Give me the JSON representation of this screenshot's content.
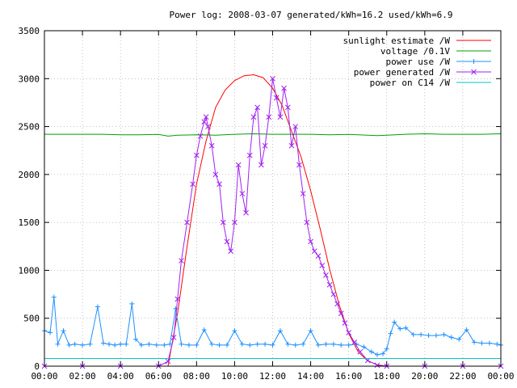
{
  "chart_data": {
    "type": "line",
    "title": "Power log: 2008-03-07 generated/kWh=16.2 used/kWh=6.9",
    "xlabel": "",
    "ylabel": "",
    "xlim": [
      0,
      24
    ],
    "ylim": [
      0,
      3500
    ],
    "x_ticks": [
      "00:00",
      "02:00",
      "04:00",
      "06:00",
      "08:00",
      "10:00",
      "12:00",
      "14:00",
      "16:00",
      "18:00",
      "20:00",
      "22:00",
      "00:00"
    ],
    "y_ticks": [
      "0",
      "500",
      "1000",
      "1500",
      "2000",
      "2500",
      "3000",
      "3500"
    ],
    "grid": true,
    "legend_position": "top-right",
    "series": [
      {
        "name": "sunlight estimate /W",
        "color": "#ff0000",
        "marker": "none",
        "x": [
          6.5,
          7.0,
          7.5,
          8.0,
          8.5,
          9.0,
          9.5,
          10.0,
          10.5,
          11.0,
          11.5,
          12.0,
          12.5,
          13.0,
          13.5,
          14.0,
          14.5,
          15.0,
          15.5,
          16.0,
          16.5,
          17.0,
          17.5,
          18.0
        ],
        "y": [
          0,
          550,
          1250,
          1900,
          2350,
          2700,
          2880,
          2980,
          3030,
          3040,
          3010,
          2900,
          2720,
          2450,
          2180,
          1830,
          1430,
          1010,
          640,
          340,
          150,
          55,
          15,
          0
        ]
      },
      {
        "name": "voltage /0.1V",
        "color": "#00a000",
        "marker": "none",
        "x": [
          0,
          1,
          2,
          3,
          4,
          5,
          6,
          6.5,
          7,
          8,
          9,
          10,
          11,
          12,
          13,
          14,
          15,
          16,
          17,
          17.5,
          18,
          19,
          20,
          21,
          22,
          23,
          24
        ],
        "y": [
          2420,
          2420,
          2420,
          2420,
          2415,
          2415,
          2418,
          2400,
          2410,
          2415,
          2410,
          2420,
          2425,
          2420,
          2420,
          2420,
          2415,
          2418,
          2410,
          2405,
          2410,
          2420,
          2425,
          2420,
          2420,
          2420,
          2425
        ]
      },
      {
        "name": "power use /W",
        "color": "#1e90ff",
        "marker": "plus",
        "x": [
          0,
          0.3,
          0.5,
          0.7,
          1.0,
          1.3,
          1.6,
          2.0,
          2.4,
          2.8,
          3.1,
          3.4,
          3.7,
          4.0,
          4.3,
          4.6,
          4.8,
          5.1,
          5.5,
          5.9,
          6.3,
          6.6,
          6.9,
          7.2,
          7.6,
          8.0,
          8.4,
          8.8,
          9.2,
          9.6,
          10.0,
          10.4,
          10.8,
          11.2,
          11.6,
          12.0,
          12.4,
          12.8,
          13.2,
          13.6,
          14.0,
          14.4,
          14.8,
          15.2,
          15.6,
          16.0,
          16.4,
          16.8,
          17.2,
          17.5,
          17.8,
          18.0,
          18.2,
          18.4,
          18.7,
          19.0,
          19.4,
          19.8,
          20.2,
          20.6,
          21.0,
          21.4,
          21.8,
          22.2,
          22.6,
          23.0,
          23.4,
          23.8,
          24.0
        ],
        "y": [
          370,
          350,
          720,
          230,
          370,
          220,
          230,
          220,
          230,
          620,
          240,
          230,
          220,
          230,
          230,
          650,
          280,
          220,
          230,
          220,
          220,
          230,
          600,
          230,
          220,
          220,
          380,
          230,
          220,
          220,
          370,
          230,
          220,
          230,
          230,
          220,
          370,
          230,
          220,
          230,
          370,
          220,
          230,
          230,
          220,
          220,
          230,
          200,
          150,
          120,
          130,
          180,
          340,
          460,
          390,
          400,
          330,
          330,
          320,
          320,
          330,
          300,
          280,
          380,
          250,
          240,
          240,
          230,
          220
        ]
      },
      {
        "name": "power generated /W",
        "color": "#a020f0",
        "marker": "cross",
        "x": [
          0,
          2,
          4,
          6.0,
          6.5,
          6.8,
          7.0,
          7.2,
          7.5,
          7.8,
          8.0,
          8.2,
          8.4,
          8.5,
          8.6,
          8.8,
          9.0,
          9.2,
          9.4,
          9.6,
          9.8,
          10.0,
          10.2,
          10.4,
          10.6,
          10.8,
          11.0,
          11.2,
          11.4,
          11.6,
          11.8,
          12.0,
          12.2,
          12.4,
          12.6,
          12.8,
          13.0,
          13.2,
          13.4,
          13.6,
          13.8,
          14.0,
          14.2,
          14.4,
          14.6,
          14.8,
          15.0,
          15.2,
          15.4,
          15.6,
          15.8,
          16.0,
          16.3,
          16.6,
          17.0,
          17.5,
          18.0,
          20,
          22,
          24
        ],
        "y": [
          0,
          0,
          0,
          0,
          50,
          300,
          700,
          1100,
          1500,
          1900,
          2200,
          2400,
          2550,
          2600,
          2500,
          2300,
          2000,
          1900,
          1500,
          1300,
          1200,
          1500,
          2100,
          1800,
          1600,
          2200,
          2600,
          2700,
          2100,
          2300,
          2600,
          3000,
          2800,
          2600,
          2900,
          2700,
          2300,
          2500,
          2100,
          1800,
          1500,
          1300,
          1200,
          1150,
          1050,
          950,
          850,
          750,
          650,
          550,
          450,
          350,
          250,
          150,
          60,
          10,
          0,
          0,
          0,
          0
        ]
      },
      {
        "name": "power on C14 /W",
        "color": "#00c8c8",
        "marker": "none",
        "x": [
          0,
          4,
          8,
          12,
          16,
          20,
          24
        ],
        "y": [
          80,
          80,
          80,
          80,
          80,
          80,
          80
        ]
      }
    ]
  }
}
